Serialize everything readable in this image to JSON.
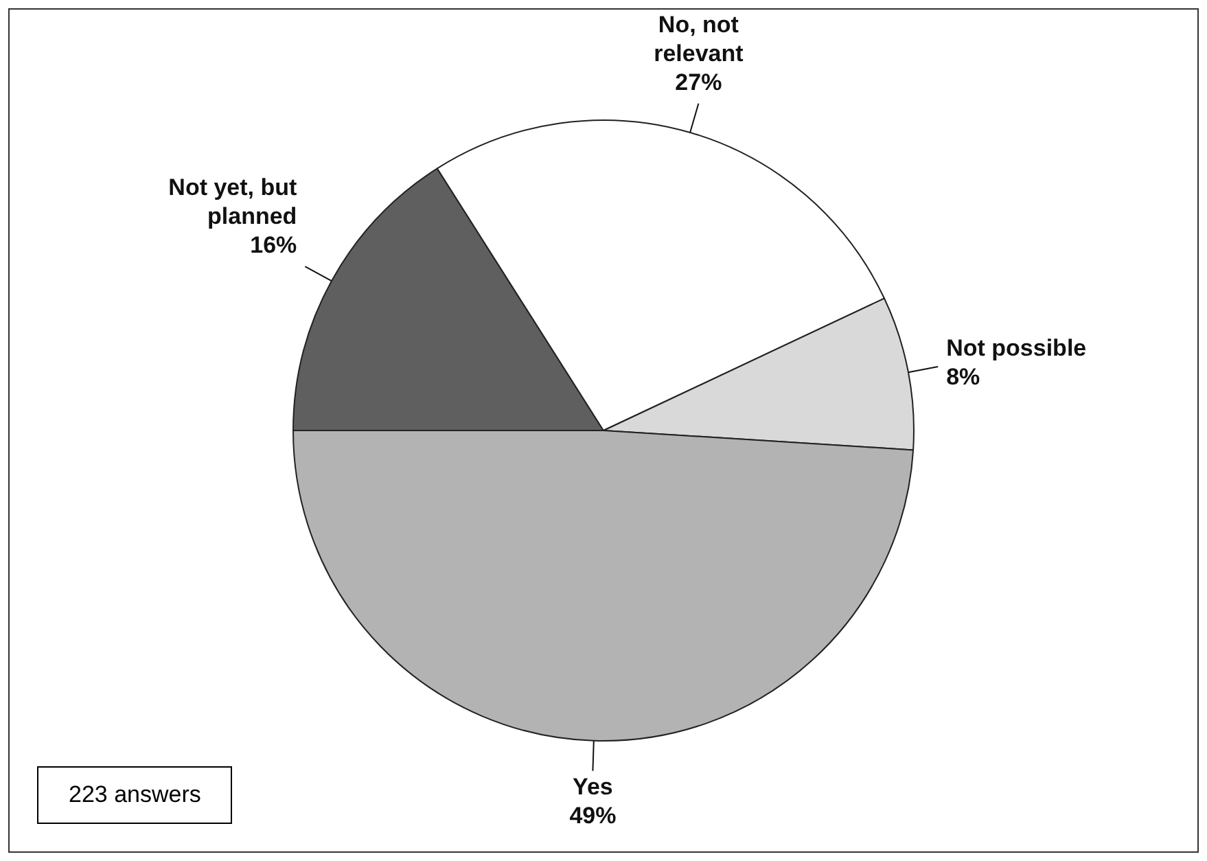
{
  "chart_data": {
    "type": "pie",
    "categories": [
      "Not yet, but planned",
      "No, not relevant",
      "Not possible",
      "Yes"
    ],
    "values": [
      16,
      27,
      8,
      49
    ],
    "colors": [
      "#5f5f5f",
      "#ffffff",
      "#d9d9d9",
      "#b3b3b3"
    ],
    "value_labels": [
      "16%",
      "27%",
      "8%",
      "49%"
    ],
    "legend": false,
    "annotations": [
      "223 answers"
    ]
  }
}
